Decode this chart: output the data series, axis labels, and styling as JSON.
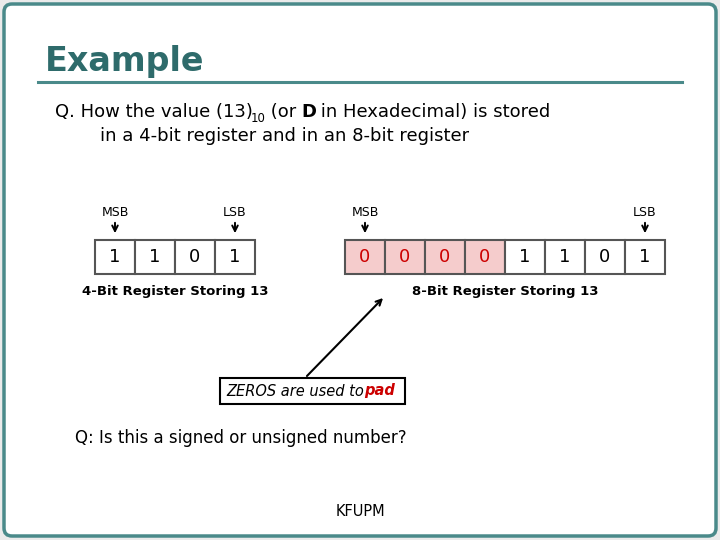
{
  "title": "Example",
  "title_color": "#2e6b6b",
  "bg_color": "#ebebeb",
  "border_color": "#4a8a8a",
  "four_bit_bits": [
    "1",
    "1",
    "0",
    "1"
  ],
  "eight_bit_bits": [
    "0",
    "0",
    "0",
    "0",
    "1",
    "1",
    "0",
    "1"
  ],
  "eight_bit_highlight": [
    0,
    1,
    2,
    3
  ],
  "highlight_color": "#f5cccc",
  "cell_normal_color": "#ffffff",
  "cell_border_color": "#555555",
  "label_4bit": "4-Bit Register Storing 13",
  "label_8bit": "8-Bit Register Storing 13",
  "msb_label": "MSB",
  "lsb_label": "LSB",
  "zeros_note": "ZEROS are used to ",
  "zeros_note_pad": "pad",
  "zeros_note_pad_color": "#cc0000",
  "question2": "Q: Is this a signed or unsigned number?",
  "footer": "KFUPM",
  "line_color": "#4a8a8a"
}
